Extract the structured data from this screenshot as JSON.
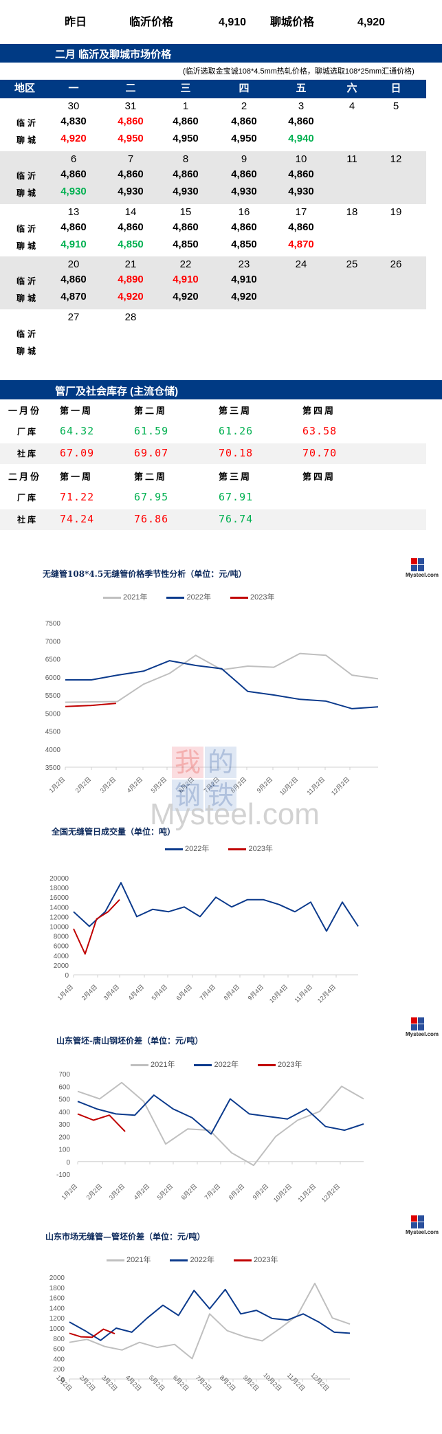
{
  "yesterday": {
    "label": "昨日",
    "linyi_label": "临沂价格",
    "linyi_value": "4,910",
    "liaocheng_label": "聊城价格",
    "liaocheng_value": "4,920"
  },
  "price_section": {
    "title": "二月  临沂及聊城市场价格",
    "note": "(临沂选取金宝诚108*4.5mm热轧价格，聊城选取108*25mm汇通价格)",
    "header": [
      "地区",
      "一",
      "二",
      "三",
      "四",
      "五",
      "六",
      "日"
    ],
    "city_labels": {
      "linyi": "临沂",
      "liaocheng": "聊城"
    },
    "weeks": [
      {
        "days": [
          "30",
          "31",
          "1",
          "2",
          "3",
          "4",
          "5"
        ],
        "linyi": [
          {
            "v": "4,830",
            "c": "black"
          },
          {
            "v": "4,860",
            "c": "red"
          },
          {
            "v": "4,860",
            "c": "black"
          },
          {
            "v": "4,860",
            "c": "black"
          },
          {
            "v": "4,860",
            "c": "black"
          }
        ],
        "liaocheng": [
          {
            "v": "4,920",
            "c": "red"
          },
          {
            "v": "4,950",
            "c": "red"
          },
          {
            "v": "4,950",
            "c": "black"
          },
          {
            "v": "4,950",
            "c": "black"
          },
          {
            "v": "4,940",
            "c": "green"
          }
        ]
      },
      {
        "days": [
          "6",
          "7",
          "8",
          "9",
          "10",
          "11",
          "12"
        ],
        "linyi": [
          {
            "v": "4,860",
            "c": "black"
          },
          {
            "v": "4,860",
            "c": "black"
          },
          {
            "v": "4,860",
            "c": "black"
          },
          {
            "v": "4,860",
            "c": "black"
          },
          {
            "v": "4,860",
            "c": "black"
          }
        ],
        "liaocheng": [
          {
            "v": "4,930",
            "c": "green"
          },
          {
            "v": "4,930",
            "c": "black"
          },
          {
            "v": "4,930",
            "c": "black"
          },
          {
            "v": "4,930",
            "c": "black"
          },
          {
            "v": "4,930",
            "c": "black"
          }
        ]
      },
      {
        "days": [
          "13",
          "14",
          "15",
          "16",
          "17",
          "18",
          "19"
        ],
        "linyi": [
          {
            "v": "4,860",
            "c": "black"
          },
          {
            "v": "4,860",
            "c": "black"
          },
          {
            "v": "4,860",
            "c": "black"
          },
          {
            "v": "4,860",
            "c": "black"
          },
          {
            "v": "4,860",
            "c": "black"
          }
        ],
        "liaocheng": [
          {
            "v": "4,910",
            "c": "green"
          },
          {
            "v": "4,850",
            "c": "green"
          },
          {
            "v": "4,850",
            "c": "black"
          },
          {
            "v": "4,850",
            "c": "black"
          },
          {
            "v": "4,870",
            "c": "red"
          }
        ]
      },
      {
        "days": [
          "20",
          "21",
          "22",
          "23",
          "24",
          "25",
          "26"
        ],
        "linyi": [
          {
            "v": "4,860",
            "c": "black"
          },
          {
            "v": "4,890",
            "c": "red"
          },
          {
            "v": "4,910",
            "c": "red"
          },
          {
            "v": "4,910",
            "c": "black"
          }
        ],
        "liaocheng": [
          {
            "v": "4,870",
            "c": "black"
          },
          {
            "v": "4,920",
            "c": "red"
          },
          {
            "v": "4,920",
            "c": "black"
          },
          {
            "v": "4,920",
            "c": "black"
          }
        ]
      },
      {
        "days": [
          "27",
          "28"
        ],
        "linyi": [],
        "liaocheng": []
      }
    ]
  },
  "inventory": {
    "title": "管厂及社会库存 (主流仓储)",
    "months": [
      {
        "label": "一月份",
        "weeks": [
          "第一周",
          "第二周",
          "第三周",
          "第四周"
        ],
        "rows": [
          {
            "label": "厂库",
            "values": [
              {
                "v": "64.32",
                "c": "green"
              },
              {
                "v": "61.59",
                "c": "green"
              },
              {
                "v": "61.26",
                "c": "green"
              },
              {
                "v": "63.58",
                "c": "red"
              }
            ]
          },
          {
            "label": "社库",
            "values": [
              {
                "v": "67.09",
                "c": "red"
              },
              {
                "v": "69.07",
                "c": "red"
              },
              {
                "v": "70.18",
                "c": "red"
              },
              {
                "v": "70.70",
                "c": "red"
              }
            ]
          }
        ]
      },
      {
        "label": "二月份",
        "weeks": [
          "第一周",
          "第二周",
          "第三周",
          "第四周"
        ],
        "rows": [
          {
            "label": "厂库",
            "values": [
              {
                "v": "71.22",
                "c": "red"
              },
              {
                "v": "67.95",
                "c": "green"
              },
              {
                "v": "67.91",
                "c": "green"
              }
            ]
          },
          {
            "label": "社库",
            "values": [
              {
                "v": "74.24",
                "c": "red"
              },
              {
                "v": "76.86",
                "c": "red"
              },
              {
                "v": "76.74",
                "c": "green"
              }
            ]
          }
        ]
      }
    ]
  },
  "colors": {
    "band": "#003a84",
    "red": "#ff0000",
    "green": "#00b050",
    "s2021": "#bfbfbf",
    "s2022": "#0b3a8c",
    "s2023": "#c00000"
  },
  "logo": {
    "text": "Mysteel.com",
    "chars": [
      "我",
      "的",
      "钢",
      "铁"
    ]
  },
  "watermark": {
    "chars": [
      "我",
      "的",
      "钢",
      "铁"
    ],
    "text": "Mysteel.com"
  },
  "chart_data": [
    {
      "type": "line",
      "title": "无缝管108*4.5无缝管价格季节性分析（单位：元/吨）",
      "legend": [
        "2021年",
        "2022年",
        "2023年"
      ],
      "yticks": [
        3500,
        4000,
        4500,
        5000,
        5500,
        6000,
        6500,
        7000,
        7500
      ],
      "ylim": [
        3500,
        7500
      ],
      "categories": [
        "1月2日",
        "2月2日",
        "3月2日",
        "4月2日",
        "5月2日",
        "6月2日",
        "7月2日",
        "8月2日",
        "9月2日",
        "10月2日",
        "11月2日",
        "12月2日"
      ],
      "series": [
        {
          "name": "2021年",
          "values": [
            5300,
            5310,
            5320,
            5800,
            6100,
            6600,
            6200,
            6300,
            6270,
            6650,
            6600,
            6050,
            5950
          ]
        },
        {
          "name": "2022年",
          "values": [
            5920,
            5920,
            6050,
            6160,
            6450,
            6320,
            6230,
            5600,
            5500,
            5380,
            5330,
            5120,
            5170
          ]
        },
        {
          "name": "2023年",
          "values": [
            5180,
            5210,
            5270
          ]
        }
      ]
    },
    {
      "type": "line",
      "title": "全国无缝管日成交量（单位：吨）",
      "legend": [
        "2022年",
        "2023年"
      ],
      "yticks": [
        0,
        2000,
        4000,
        6000,
        8000,
        10000,
        12000,
        14000,
        16000,
        18000,
        20000
      ],
      "ylim": [
        0,
        20000
      ],
      "categories": [
        "1月4日",
        "2月4日",
        "3月4日",
        "4月4日",
        "5月4日",
        "6月4日",
        "7月4日",
        "8月4日",
        "9月4日",
        "10月4日",
        "11月4日",
        "12月4日"
      ],
      "series": [
        {
          "name": "2022年",
          "values": [
            13000,
            10000,
            13000,
            19000,
            12000,
            13500,
            13000,
            14000,
            12000,
            16000,
            14000,
            15500,
            15500,
            14500,
            13000,
            15000,
            9000,
            15000,
            10000
          ]
        },
        {
          "name": "2023年",
          "values": [
            9500,
            4300,
            11500,
            13000,
            15500
          ]
        }
      ]
    },
    {
      "type": "line",
      "title": "山东管坯-唐山钢坯价差（单位：元/吨）",
      "legend": [
        "2021年",
        "2022年",
        "2023年"
      ],
      "yticks": [
        -100,
        0,
        100,
        200,
        300,
        400,
        500,
        600,
        700
      ],
      "ylim": [
        -100,
        700
      ],
      "categories": [
        "1月2日",
        "2月2日",
        "3月2日",
        "4月2日",
        "5月2日",
        "6月2日",
        "7月2日",
        "8月2日",
        "9月2日",
        "10月2日",
        "11月2日",
        "12月2日"
      ],
      "series": [
        {
          "name": "2021年",
          "values": [
            560,
            500,
            630,
            480,
            140,
            260,
            250,
            70,
            -30,
            200,
            330,
            400,
            600,
            500
          ]
        },
        {
          "name": "2022年",
          "values": [
            480,
            420,
            380,
            370,
            530,
            420,
            350,
            220,
            500,
            380,
            360,
            340,
            420,
            280,
            250,
            300
          ]
        },
        {
          "name": "2023年",
          "values": [
            380,
            330,
            370,
            240
          ]
        }
      ]
    },
    {
      "type": "line",
      "title": "山东市场无缝管—管坯价差（单位：元/吨）",
      "legend": [
        "2021年",
        "2022年",
        "2023年"
      ],
      "yticks": [
        0,
        200,
        400,
        600,
        800,
        1000,
        1200,
        1400,
        1600,
        1800,
        2000
      ],
      "ylim": [
        0,
        2000
      ],
      "categories": [
        "1月2日",
        "2月2日",
        "3月2日",
        "4月2日",
        "5月2日",
        "6月2日",
        "7月2日",
        "8月2日",
        "9月2日",
        "10月2日",
        "11月2日",
        "12月2日"
      ],
      "series": [
        {
          "name": "2021年",
          "values": [
            720,
            780,
            640,
            570,
            720,
            620,
            680,
            400,
            1280,
            950,
            830,
            750,
            990,
            1250,
            1880,
            1200,
            1080
          ]
        },
        {
          "name": "2022年",
          "values": [
            1120,
            950,
            760,
            1000,
            920,
            1200,
            1450,
            1250,
            1740,
            1380,
            1760,
            1280,
            1350,
            1190,
            1160,
            1280,
            1120,
            920,
            900
          ]
        },
        {
          "name": "2023年",
          "values": [
            900,
            830,
            820,
            980,
            890
          ]
        }
      ]
    }
  ]
}
